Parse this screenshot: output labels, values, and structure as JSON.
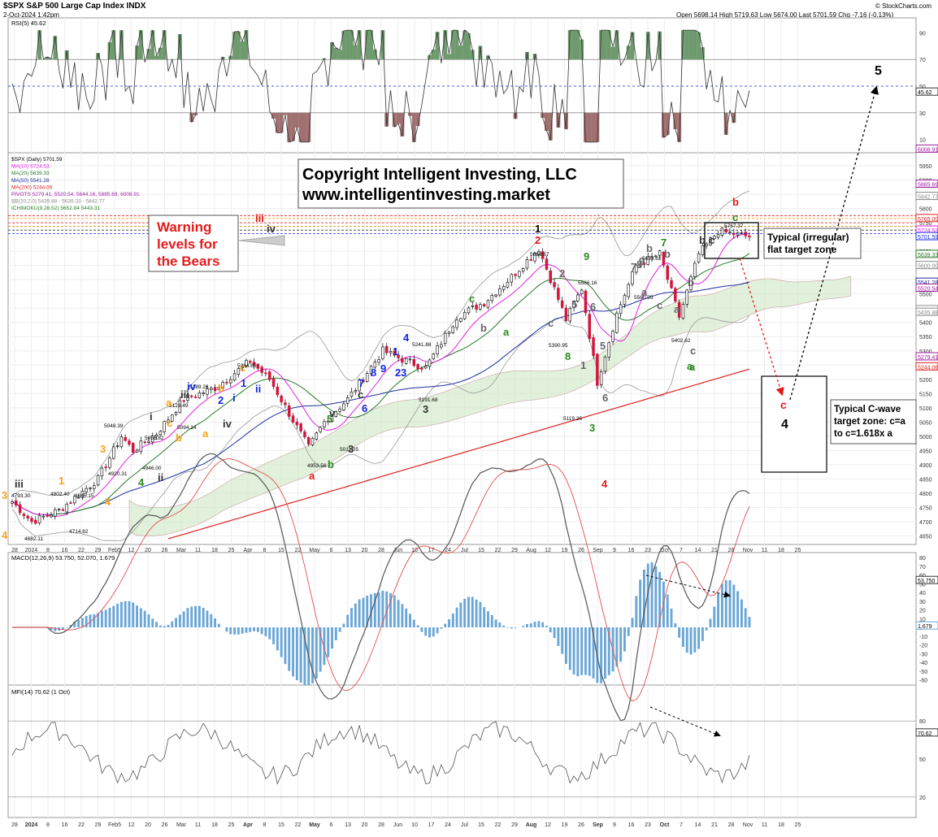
{
  "header": {
    "symbol_title": "$SPX S&P 500 Large Cap Index INDX",
    "date": "2-Oct-2024 1:42pm",
    "watermark": "© StockCharts.com",
    "quote": "Open 5698.14  High 5719.63  Low 5674.00  Last 5701.59  Chg -7.16 (-0.13%)"
  },
  "rsi": {
    "label": "RSI(5) 45.62",
    "axis_ticks": [
      "90",
      "70",
      "50",
      "30",
      "10"
    ],
    "last_value": "45.62"
  },
  "price_panel": {
    "legend": [
      {
        "text": "$SPX (Daily) 5701.59",
        "color": "#000000"
      },
      {
        "text": "MA(10) 5724.53",
        "color": "#e020e0"
      },
      {
        "text": "MA(20) 5639.33",
        "color": "#2a7a2a"
      },
      {
        "text": "MA(50) 5541.28",
        "color": "#1e2e9e"
      },
      {
        "text": "MA(200) 5244.06",
        "color": "#e02020"
      },
      {
        "text": "PIVOTS 5279.41, 5520.54, 5644.16, 5885.69, 6008.91",
        "color": "#a020a0"
      },
      {
        "text": "BB(20,2.0) 5435.88 - 5639.33 - 5842.77",
        "color": "#888888"
      },
      {
        "text": "ICHIMOKU(9,26,52) 5652.84 5443.31",
        "color": "#2a8a2a"
      }
    ],
    "axis_ticks": [
      "5950",
      "5900",
      "5850",
      "5800",
      "5750",
      "5700",
      "5650",
      "5600",
      "5550",
      "5500",
      "5450",
      "5400",
      "5350",
      "5300",
      "5250",
      "5200",
      "5150",
      "5100",
      "5050",
      "5000",
      "4950",
      "4900",
      "4850",
      "4800",
      "4750",
      "4700",
      "4650"
    ],
    "right_labels": [
      "6008.91",
      "5885.69",
      "5842.77",
      "5765.00",
      "5724.53",
      "5701.59",
      "5639.33",
      "5600.00",
      "5541.28",
      "5520.54",
      "5445.00",
      "5435.88",
      "5279.41",
      "5244.06"
    ],
    "copyright_line1": "Copyright Intelligent Investing, LLC",
    "copyright_line2": "www.intelligentinvesting.market",
    "warning_text": [
      "Warning",
      "levels for",
      "the Bears"
    ],
    "typical_flat_line1": "Typical (irregular)",
    "typical_flat_line2": "flat target zone",
    "cwave_text": [
      "Typical C-wave",
      "target zone: c=a",
      "to c=1.618x a"
    ],
    "target_c": "c",
    "target_4": "4",
    "target_5": "5",
    "price_labels": [
      "4682.11",
      "4714.82",
      "4793.30",
      "4802.40",
      "4845.15",
      "4920.31",
      "4946.00",
      "5048.39",
      "5056.82",
      "5094.14",
      "5123.49",
      "5189.26",
      "5264.85",
      "4953.56",
      "5011.05",
      "5191.68",
      "5241.88",
      "5390.95",
      "5566.16",
      "5669.67",
      "5119.26",
      "5653.62",
      "5560.95",
      "5402.62",
      "5767.37"
    ],
    "wave_labels": [
      "iii",
      "4",
      "3",
      "1",
      "3",
      "4",
      "4",
      "i",
      "ii",
      "iii",
      "a",
      "b",
      "c",
      "a",
      "b",
      "c",
      "iv",
      "iii",
      "iv",
      "a",
      "b",
      "c",
      "3",
      "v",
      "iv",
      "2",
      "1",
      "i",
      "ii",
      "1",
      "2",
      "3",
      "4",
      "5",
      "6",
      "7",
      "8",
      "9",
      "1",
      "2",
      "3",
      "4",
      "5",
      "6",
      "7",
      "8",
      "9",
      "a",
      "b",
      "c",
      "b",
      "c",
      "a",
      "b",
      "c",
      "1",
      "2",
      "3",
      "5",
      "6",
      "7",
      "8",
      "9",
      "a",
      "b",
      "c",
      "a",
      "b",
      "c",
      "a",
      "b",
      "c"
    ]
  },
  "x_axis": {
    "price_ticks": [
      "28",
      "2024",
      "8",
      "16",
      "22",
      "29",
      "Feb5",
      "12",
      "20",
      "26",
      "Mar",
      "11",
      "18",
      "25",
      "Apr",
      "8",
      "15",
      "22",
      "May",
      "6",
      "13",
      "20",
      "28",
      "Jun",
      "10",
      "17",
      "24",
      "Jul",
      "15",
      "22",
      "29",
      "Aug",
      "12",
      "19",
      "26",
      "Sep",
      "9",
      "16",
      "23",
      "Oct",
      "7",
      "14",
      "21",
      "28",
      "Nov",
      "11",
      "18",
      "25"
    ],
    "bottom_ticks": [
      "28",
      "2024",
      "8",
      "16",
      "22",
      "29",
      "Feb5",
      "12",
      "20",
      "26",
      "Mar",
      "11",
      "18",
      "25",
      "Apr",
      "8",
      "15",
      "22",
      "May",
      "6",
      "13",
      "20",
      "28",
      "Jun",
      "10",
      "17",
      "24",
      "Jul",
      "15",
      "22",
      "29",
      "Aug",
      "12",
      "19",
      "26",
      "Sep",
      "9",
      "16",
      "23",
      "Oct",
      "7",
      "14",
      "21",
      "28",
      "Nov",
      "11",
      "18",
      "25"
    ]
  },
  "macd": {
    "label": "MACD(12,26,9) 53.750, 52.070, 1.679",
    "axis_ticks": [
      "80",
      "70",
      "60",
      "50",
      "40",
      "30",
      "20",
      "10",
      "0",
      "-10",
      "-20",
      "-30",
      "-40",
      "-50",
      "-60"
    ],
    "last_values": [
      "53.750",
      "1.679"
    ]
  },
  "mfi": {
    "label": "MFI(14) 70.62 (1 Oct)",
    "axis_ticks": [
      "80",
      "50",
      "20"
    ],
    "last_value": "70.62"
  },
  "colors": {
    "candle_up": "#ffffff",
    "candle_down": "#d4143c",
    "wave_red": "#e21b1b",
    "wave_green": "#2b8a1f",
    "wave_blue": "#1428e0",
    "wave_orange": "#f5a31a",
    "wave_gray": "#666666",
    "ichimoku_fill": "#cfe8c4",
    "rsi_overbought": "#6e9a6e",
    "rsi_oversold": "#a07070",
    "macd_hist": "#6aa6d6"
  },
  "chart_data": {
    "type": "line",
    "title": "$SPX S&P 500 Large Cap Index INDX (Daily)",
    "x": [
      "2023-12-28",
      "2024-01-05",
      "2024-01-17",
      "2024-01-31",
      "2024-02-08",
      "2024-02-12",
      "2024-02-21",
      "2024-03-01",
      "2024-03-13",
      "2024-03-28",
      "2024-04-05",
      "2024-04-19",
      "2024-04-25",
      "2024-05-03",
      "2024-05-15",
      "2024-05-23",
      "2024-05-31",
      "2024-06-12",
      "2024-06-24",
      "2024-07-05",
      "2024-07-16",
      "2024-07-25",
      "2024-07-31",
      "2024-08-05",
      "2024-08-13",
      "2024-08-20",
      "2024-08-30",
      "2024-09-06",
      "2024-09-13",
      "2024-09-20",
      "2024-10-02"
    ],
    "series": [
      {
        "name": "$SPX",
        "values": [
          4770,
          4700,
          4740,
          4850,
          5000,
          4950,
          5010,
          5130,
          5170,
          5250,
          5200,
          4960,
          5050,
          5130,
          5300,
          5270,
          5240,
          5420,
          5470,
          5560,
          5660,
          5410,
          5520,
          5190,
          5430,
          5600,
          5640,
          5420,
          5640,
          5720,
          5701.59
        ]
      }
    ],
    "ylim": [
      4620,
      5990
    ],
    "grid": true
  }
}
